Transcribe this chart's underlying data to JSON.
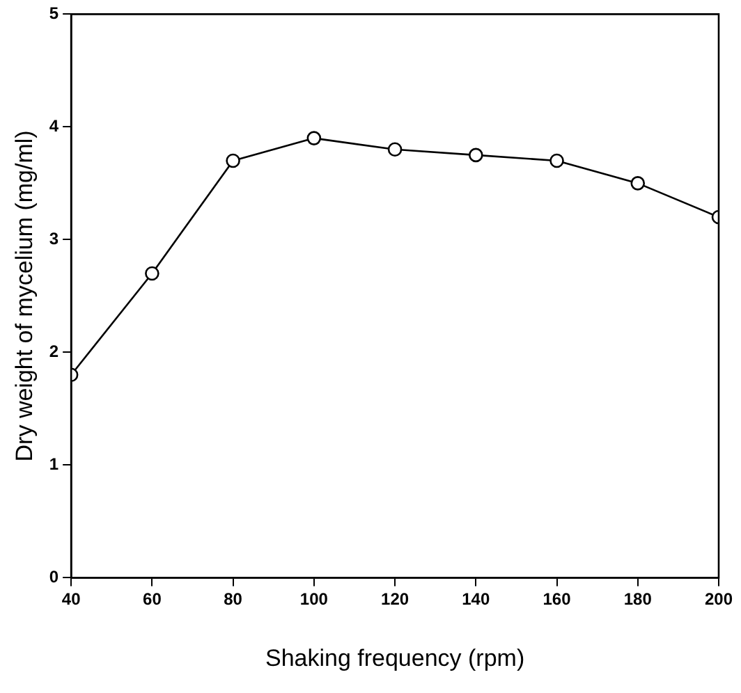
{
  "chart_data": {
    "type": "line",
    "xlabel": "Shaking frequency (rpm)",
    "ylabel": "Dry weight of mycelium (mg/ml)",
    "x": [
      40,
      60,
      80,
      100,
      120,
      140,
      160,
      180,
      200
    ],
    "series": [
      {
        "color": "#000000",
        "values": [
          1.8,
          2.7,
          3.7,
          3.9,
          3.8,
          3.75,
          3.7,
          3.5,
          3.2
        ]
      }
    ],
    "xlim": [
      40,
      200
    ],
    "xticks": [
      40,
      60,
      80,
      100,
      120,
      140,
      160,
      180,
      200
    ],
    "ylim": [
      0,
      5
    ],
    "yticks": [
      0,
      1,
      2,
      3,
      4,
      5
    ],
    "grid": false,
    "legend": false,
    "marker": "circle",
    "line_style": "solid"
  }
}
